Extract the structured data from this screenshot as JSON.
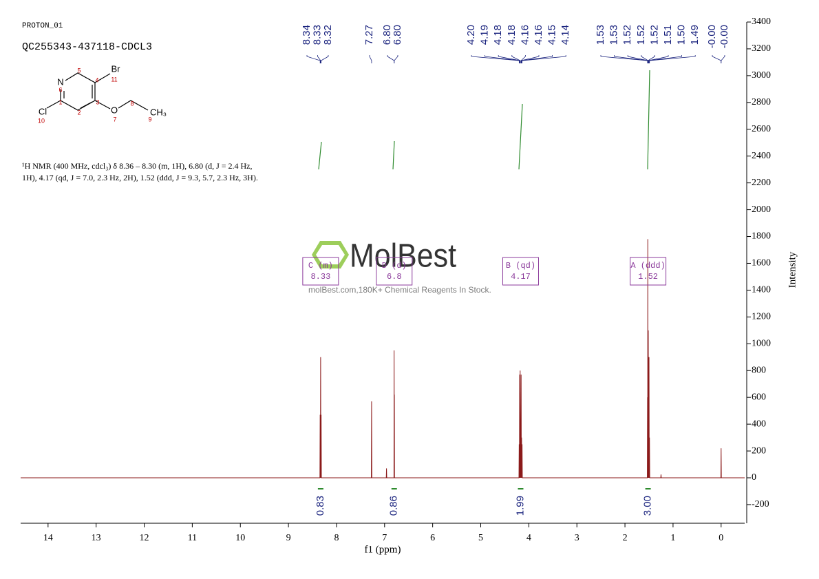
{
  "header": {
    "experiment": "PROTON_01",
    "sample": "QC255343-437118-CDCL3"
  },
  "structure": {
    "atoms": [
      "N",
      "Br",
      "Cl",
      "O",
      "CH₃"
    ],
    "numbers": [
      "5",
      "4",
      "11",
      "6",
      "1",
      "3",
      "2",
      "10",
      "7",
      "8",
      "9"
    ]
  },
  "description": [
    "¹H NMR (400 MHz, cdcl₃) δ 8.36 – 8.30 (m, 1H), 6.80 (d, J = 2.4 Hz,",
    "1H), 4.17 (qd, J = 7.0, 2.3 Hz, 2H), 1.52 (ddd, J = 9.3, 5.7, 2.3 Hz, 3H)."
  ],
  "watermark": {
    "brand": "MolBest",
    "tagline": "molBest.com,180K+ Chemical Reagents In Stock."
  },
  "chart_data": {
    "type": "line",
    "color": "#8b1a1a",
    "xlabel": "f1 (ppm)",
    "ylabel": "Intensity",
    "xlim": [
      14.57,
      -0.49
    ],
    "xticks": [
      14,
      13,
      12,
      11,
      10,
      9,
      8,
      7,
      6,
      5,
      4,
      3,
      2,
      1,
      0
    ],
    "ylim": [
      -339,
      3400
    ],
    "yticks": [
      -200,
      0,
      200,
      400,
      600,
      800,
      1000,
      1200,
      1400,
      1600,
      1800,
      2000,
      2200,
      2400,
      2600,
      2800,
      3000,
      3200,
      3400
    ],
    "x": [
      14.57,
      8.345,
      8.34,
      8.335,
      8.33,
      8.325,
      8.32,
      8.315,
      7.275,
      7.27,
      7.265,
      6.965,
      6.96,
      6.955,
      6.805,
      6.802,
      6.799,
      6.797,
      6.794,
      4.205,
      4.2,
      4.195,
      4.19,
      4.185,
      4.18,
      4.177,
      4.175,
      4.17,
      4.16,
      4.155,
      4.15,
      4.145,
      4.14,
      4.135,
      1.535,
      1.53,
      1.527,
      1.525,
      1.522,
      1.52,
      1.517,
      1.515,
      1.512,
      1.51,
      1.505,
      1.5,
      1.495,
      1.49,
      1.485,
      1.255,
      1.25,
      1.245,
      0.005,
      0,
      -0.005,
      -0.49
    ],
    "y": [
      0,
      0,
      470,
      0,
      900,
      0,
      470,
      0,
      0,
      570,
      0,
      0,
      70,
      0,
      0,
      950,
      200,
      620,
      0,
      0,
      250,
      0,
      770,
      0,
      800,
      0,
      300,
      0,
      770,
      0,
      300,
      0,
      250,
      0,
      0,
      600,
      0,
      1780,
      0,
      950,
      0,
      1100,
      0,
      580,
      0,
      900,
      0,
      300,
      0,
      0,
      25,
      0,
      0,
      220,
      0,
      0
    ],
    "peak_labels": [
      [
        "8.34",
        "8.33",
        "8.32"
      ],
      [
        "7.27"
      ],
      [
        "6.80",
        "6.80"
      ],
      [
        "4.20",
        "4.19",
        "4.18",
        "4.18",
        "4.16",
        "4.16",
        "4.15",
        "4.14"
      ],
      [
        "1.53",
        "1.53",
        "1.52",
        "1.52",
        "1.52",
        "1.51",
        "1.50",
        "1.49"
      ],
      [
        "-0.00",
        "-0.00"
      ]
    ],
    "multiplets": [
      {
        "label": "C (m)",
        "shift": 8.33,
        "integral": "0.83"
      },
      {
        "label": "D (d)",
        "shift": 6.8,
        "integral": "0.86"
      },
      {
        "label": "B (qd)",
        "shift": 4.17,
        "integral": "1.99"
      },
      {
        "label": "A (ddd)",
        "shift": 1.52,
        "integral": "3.00"
      }
    ]
  }
}
